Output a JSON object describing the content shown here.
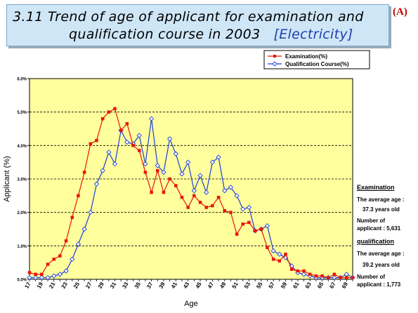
{
  "title": {
    "line1": "3.11 Trend of age of applicant for examination and",
    "line2_prefix": "qualification course in 2003",
    "line2_highlight": "[Electricity]"
  },
  "corner_label": "(A)",
  "colors": {
    "examination": "#e8170c",
    "qualification": "#1f3fd6",
    "plot_bg": "#ffff9e",
    "title_bg": "#cfe6f7"
  },
  "chart_data": {
    "type": "line",
    "ylabel": "Applicant (%)",
    "xlabel": "Age",
    "ylim": [
      0,
      6.0
    ],
    "y_ticks": [
      "0.0%",
      "1.0%",
      "2.0%",
      "3.0%",
      "4.0%",
      "5.0%",
      "6.0%"
    ],
    "x_tick_labels": [
      "17",
      "19",
      "21",
      "23",
      "25",
      "27",
      "29",
      "31",
      "33",
      "35",
      "37",
      "39",
      "41",
      "43",
      "45",
      "47",
      "49",
      "51",
      "53",
      "55",
      "57",
      "59",
      "61",
      "63",
      "65",
      "67",
      "69"
    ],
    "x": [
      17,
      18,
      19,
      20,
      21,
      22,
      23,
      24,
      25,
      26,
      27,
      28,
      29,
      30,
      31,
      32,
      33,
      34,
      35,
      36,
      37,
      38,
      39,
      40,
      41,
      42,
      43,
      44,
      45,
      46,
      47,
      48,
      49,
      50,
      51,
      52,
      53,
      54,
      55,
      56,
      57,
      58,
      59,
      60,
      61,
      62,
      63,
      64,
      65,
      66,
      67,
      68,
      69,
      70
    ],
    "series": [
      {
        "name": "Examination(%)",
        "values": [
          0.2,
          0.15,
          0.15,
          0.45,
          0.6,
          0.7,
          1.15,
          1.85,
          2.5,
          3.2,
          4.05,
          4.15,
          4.8,
          5.0,
          5.1,
          4.45,
          4.65,
          4.0,
          3.85,
          3.2,
          2.6,
          3.25,
          2.6,
          3.0,
          2.8,
          2.45,
          2.15,
          2.5,
          2.3,
          2.15,
          2.2,
          2.45,
          2.05,
          2.0,
          1.35,
          1.65,
          1.7,
          1.45,
          1.5,
          0.95,
          0.6,
          0.55,
          0.75,
          0.3,
          0.25,
          0.25,
          0.15,
          0.1,
          0.1,
          0.05,
          0.15,
          0.05,
          0.05,
          0.05
        ]
      },
      {
        "name": "Qualification Course(%)",
        "values": [
          0.05,
          0.05,
          0.05,
          0.05,
          0.1,
          0.15,
          0.25,
          0.6,
          1.05,
          1.5,
          2.0,
          2.85,
          3.25,
          3.8,
          3.45,
          4.45,
          4.1,
          4.05,
          4.3,
          3.45,
          4.8,
          3.4,
          3.2,
          4.2,
          3.75,
          3.15,
          3.5,
          2.65,
          3.1,
          2.6,
          3.5,
          3.65,
          2.65,
          2.75,
          2.5,
          2.1,
          2.15,
          1.45,
          1.5,
          1.6,
          0.85,
          0.75,
          0.65,
          0.4,
          0.2,
          0.15,
          0.1,
          0.05,
          0.05,
          0.05,
          0.05,
          0.05,
          0.15,
          0.05
        ]
      }
    ]
  },
  "side_panel": {
    "exam_heading": "Examination",
    "exam_avg_label": "The average age :",
    "exam_avg_value": "37.3 years old",
    "exam_num_label1": "Number of",
    "exam_num_label2": "applicant : 5,631",
    "qual_heading": "qualification",
    "qual_avg_label": "The average age :",
    "qual_avg_value": "39.2 years old",
    "qual_num_label1": "Number of",
    "qual_num_label2": "applicant  : 1,773"
  }
}
